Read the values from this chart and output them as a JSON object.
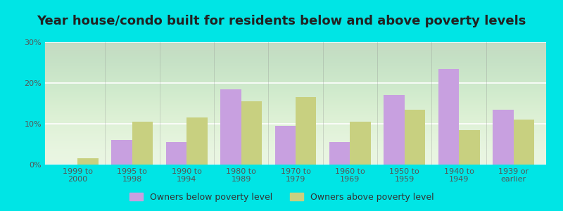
{
  "title": "Year house/condo built for residents below and above poverty levels",
  "categories": [
    "1999 to\n2000",
    "1995 to\n1998",
    "1990 to\n1994",
    "1980 to\n1989",
    "1970 to\n1979",
    "1960 to\n1969",
    "1950 to\n1959",
    "1940 to\n1949",
    "1939 or\nearlier"
  ],
  "below_poverty": [
    0.0,
    6.0,
    5.5,
    18.5,
    9.5,
    5.5,
    17.0,
    23.5,
    13.5
  ],
  "above_poverty": [
    1.5,
    10.5,
    11.5,
    15.5,
    16.5,
    10.5,
    13.5,
    8.5,
    11.0
  ],
  "below_color": "#c8a0e0",
  "above_color": "#c8d080",
  "ylim": [
    0,
    30
  ],
  "yticks": [
    0,
    10,
    20,
    30
  ],
  "ytick_labels": [
    "0%",
    "10%",
    "20%",
    "30%"
  ],
  "legend_below": "Owners below poverty level",
  "legend_above": "Owners above poverty level",
  "bg_outer": "#00e5e5",
  "bg_plot": "#d8f0d0",
  "gridline_color": "#ffffff",
  "title_fontsize": 13,
  "tick_fontsize": 8,
  "legend_fontsize": 9,
  "bar_width": 0.38
}
